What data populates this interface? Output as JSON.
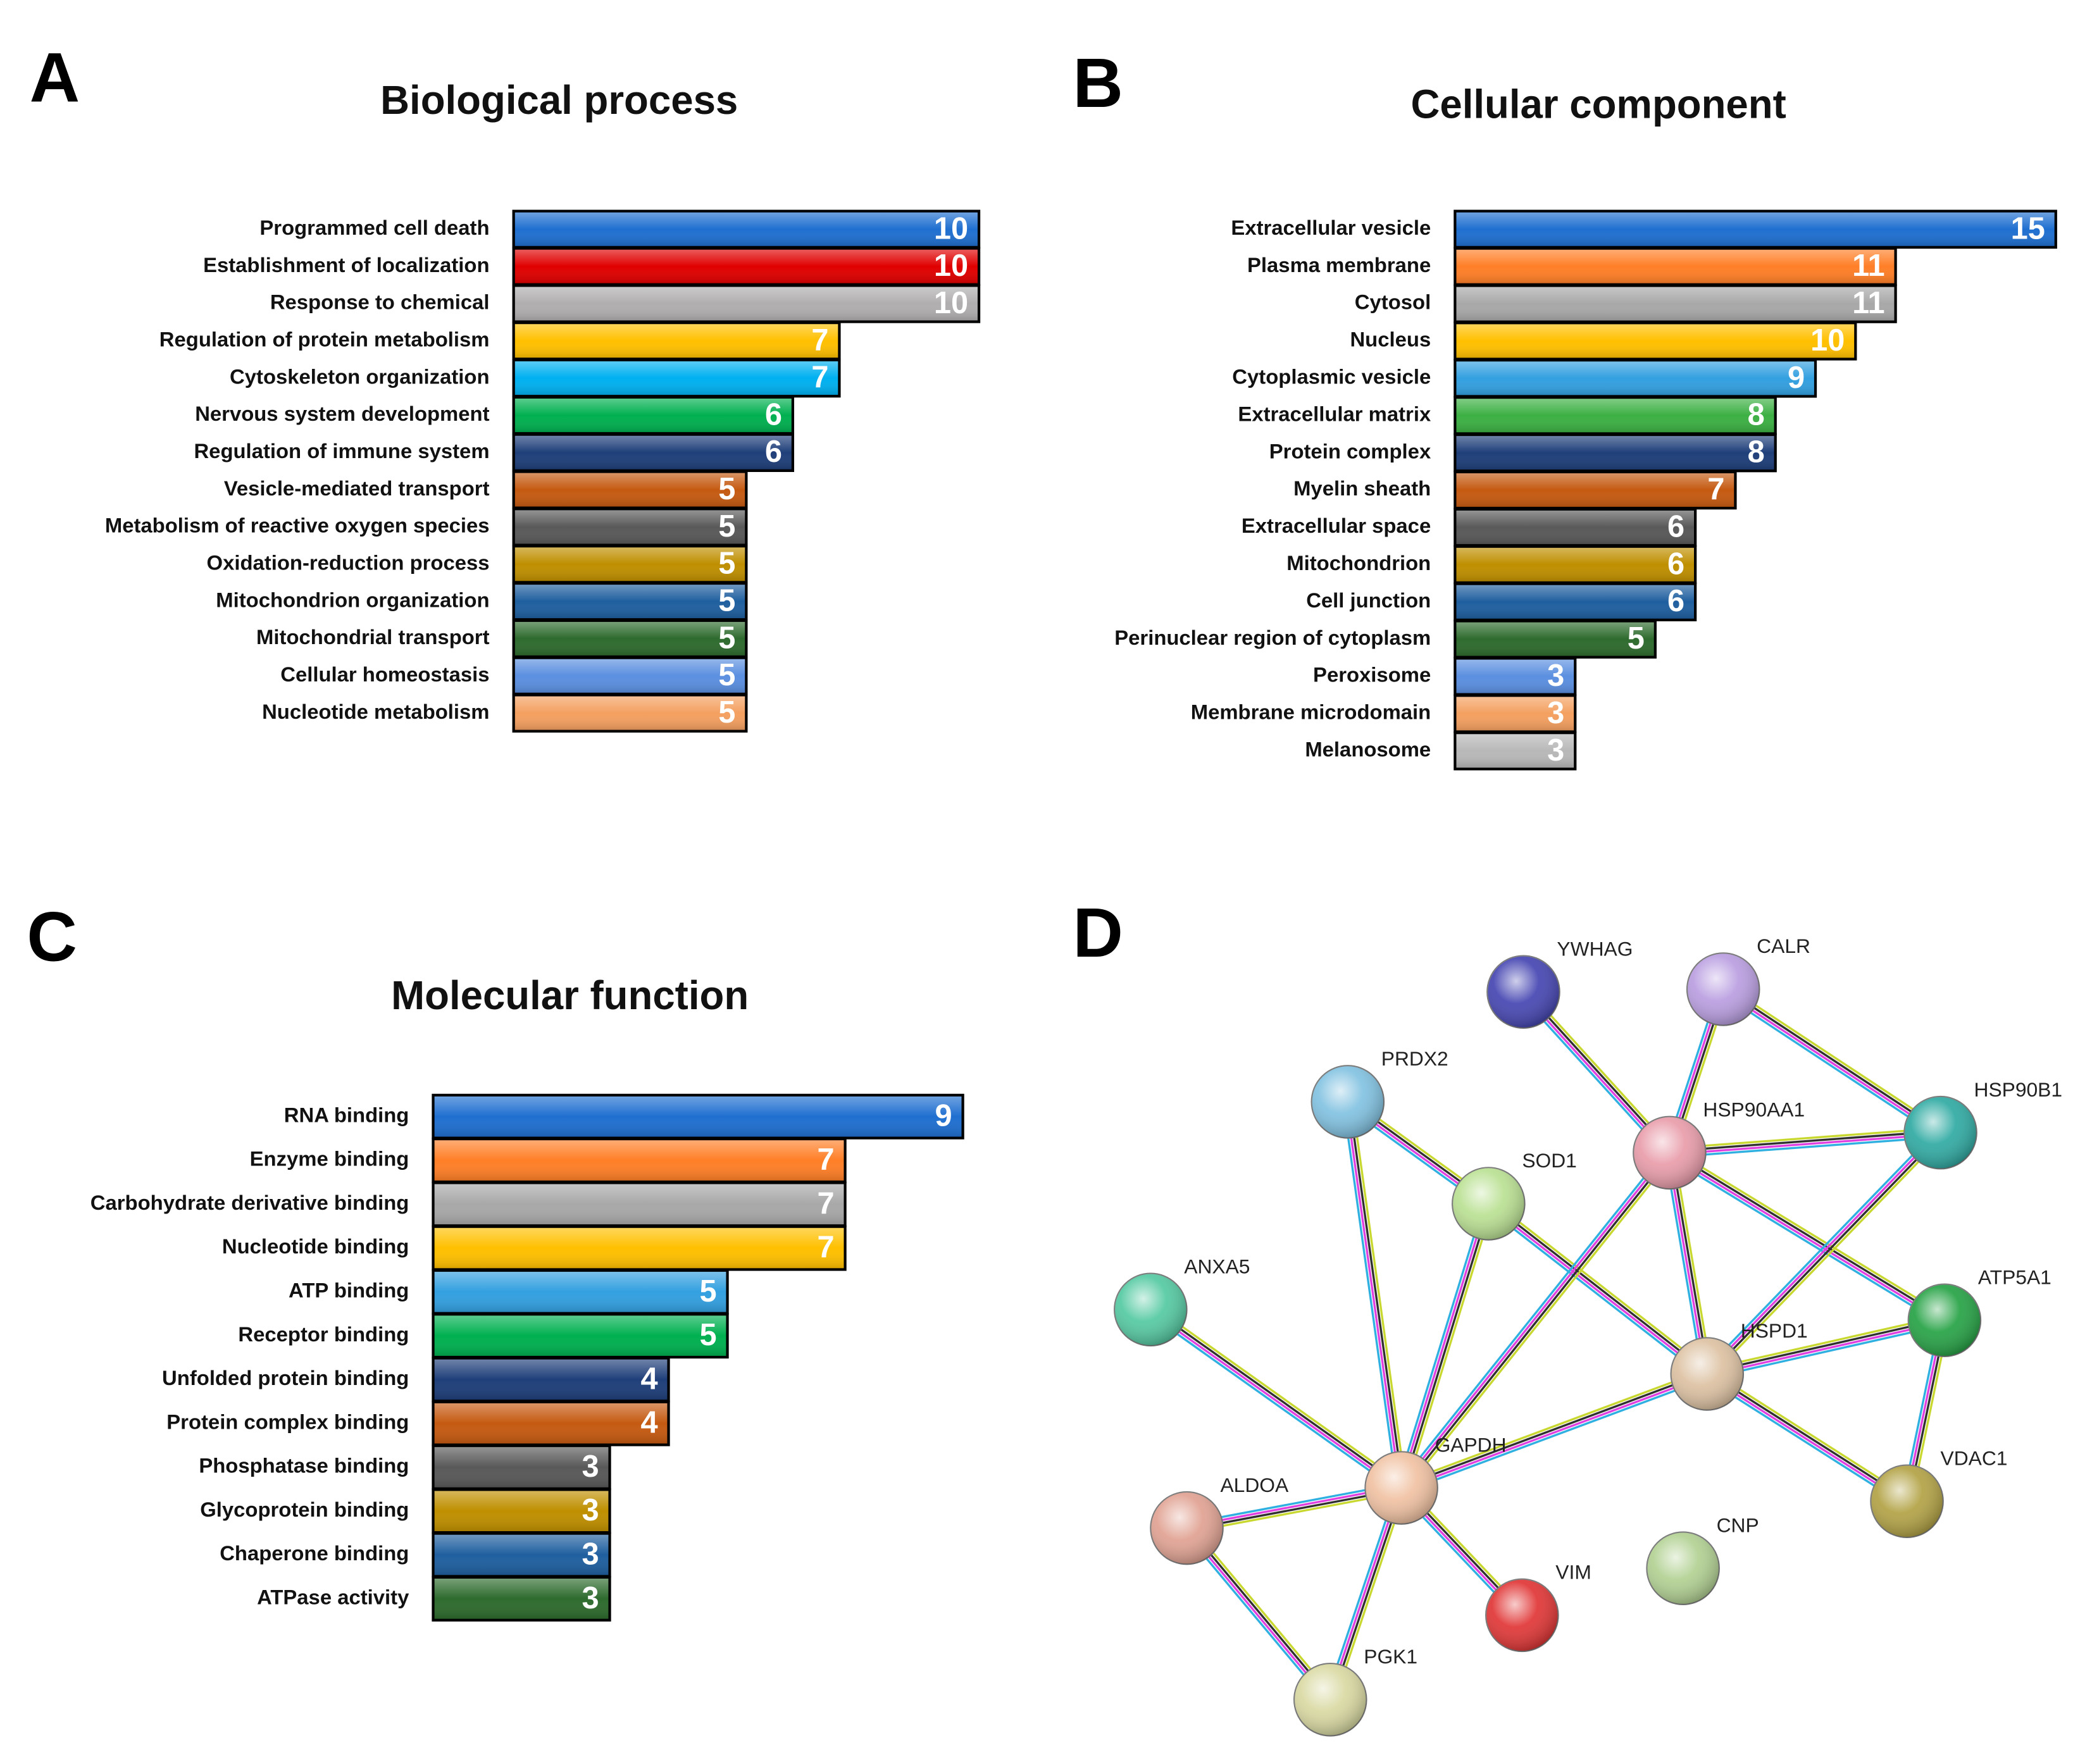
{
  "chart_data": [
    {
      "type": "barh",
      "panel_label": "A",
      "title": "Biological process",
      "categories": [
        "Programmed cell death",
        "Establishment of localization",
        "Response to chemical",
        "Regulation of protein metabolism",
        "Cytoskeleton organization",
        "Nervous system development",
        "Regulation of immune system",
        "Vesicle-mediated transport",
        "Metabolism of reactive oxygen species",
        "Oxidation-reduction process",
        "Mitochondrion organization",
        "Mitochondrial transport",
        "Cellular homeostasis",
        "Nucleotide metabolism"
      ],
      "values": [
        10,
        10,
        10,
        7,
        7,
        6,
        6,
        5,
        5,
        5,
        5,
        5,
        5,
        5
      ],
      "colors": [
        "#1f6fd0",
        "#e00000",
        "#b0aeae",
        "#ffc000",
        "#00b0f0",
        "#00b050",
        "#1f3f7a",
        "#c55a11",
        "#595959",
        "#bf8f00",
        "#1f5f9f",
        "#2e6b2e",
        "#5b8fe0",
        "#f4a060"
      ]
    },
    {
      "type": "barh",
      "panel_label": "B",
      "title": "Cellular component",
      "categories": [
        "Extracellular vesicle",
        "Plasma membrane",
        "Cytosol",
        "Nucleus",
        "Cytoplasmic vesicle",
        "Extracellular matrix",
        "Protein complex",
        "Myelin sheath",
        "Extracellular space",
        "Mitochondrion",
        "Cell junction",
        "Perinuclear region of cytoplasm",
        "Peroxisome",
        "Membrane microdomain",
        "Melanosome"
      ],
      "values": [
        15,
        11,
        11,
        10,
        9,
        8,
        8,
        7,
        6,
        6,
        6,
        5,
        3,
        3,
        3
      ],
      "colors": [
        "#1f6fd0",
        "#ff7f27",
        "#a8a8a8",
        "#ffc000",
        "#33a0e0",
        "#3cb043",
        "#1f3f7a",
        "#c55a11",
        "#595959",
        "#bf8f00",
        "#1f5f9f",
        "#2e6b2e",
        "#5b8fe0",
        "#f4a060",
        "#b8b8b8"
      ]
    },
    {
      "type": "barh",
      "panel_label": "C",
      "title": "Molecular function",
      "categories": [
        "RNA binding",
        "Enzyme binding",
        "Carbohydrate derivative binding",
        "Nucleotide binding",
        "ATP binding",
        "Receptor binding",
        "Unfolded protein binding",
        "Protein complex binding",
        "Phosphatase binding",
        "Glycoprotein binding",
        "Chaperone binding",
        "ATPase activity"
      ],
      "values": [
        9,
        7,
        7,
        7,
        5,
        5,
        4,
        4,
        3,
        3,
        3,
        3
      ],
      "colors": [
        "#1f6fd0",
        "#ff7f27",
        "#a8a8a8",
        "#ffc000",
        "#33a0e0",
        "#00b050",
        "#1f3f7a",
        "#c55a11",
        "#595959",
        "#bf8f00",
        "#1f5f9f",
        "#2e6b2e"
      ]
    },
    {
      "type": "network",
      "panel_label": "D",
      "nodes": [
        {
          "label": "YWHAG",
          "color": "#4040b0"
        },
        {
          "label": "CALR",
          "color": "#b89ce0"
        },
        {
          "label": "PRDX2",
          "color": "#7ec0e0"
        },
        {
          "label": "HSP90AA1",
          "color": "#e89aa8"
        },
        {
          "label": "HSP90B1",
          "color": "#2aa8a0"
        },
        {
          "label": "SOD1",
          "color": "#b8e090"
        },
        {
          "label": "ANXA5",
          "color": "#50c8a0"
        },
        {
          "label": "ATP5A1",
          "color": "#20a040"
        },
        {
          "label": "HSPD1",
          "color": "#dcc0a0"
        },
        {
          "label": "GAPDH",
          "color": "#f0c0a0"
        },
        {
          "label": "ALDOA",
          "color": "#e0a090"
        },
        {
          "label": "VDAC1",
          "color": "#b0a040"
        },
        {
          "label": "CNP",
          "color": "#b0d090"
        },
        {
          "label": "VIM",
          "color": "#e03030"
        },
        {
          "label": "PGK1",
          "color": "#d8d8a0"
        }
      ]
    }
  ]
}
